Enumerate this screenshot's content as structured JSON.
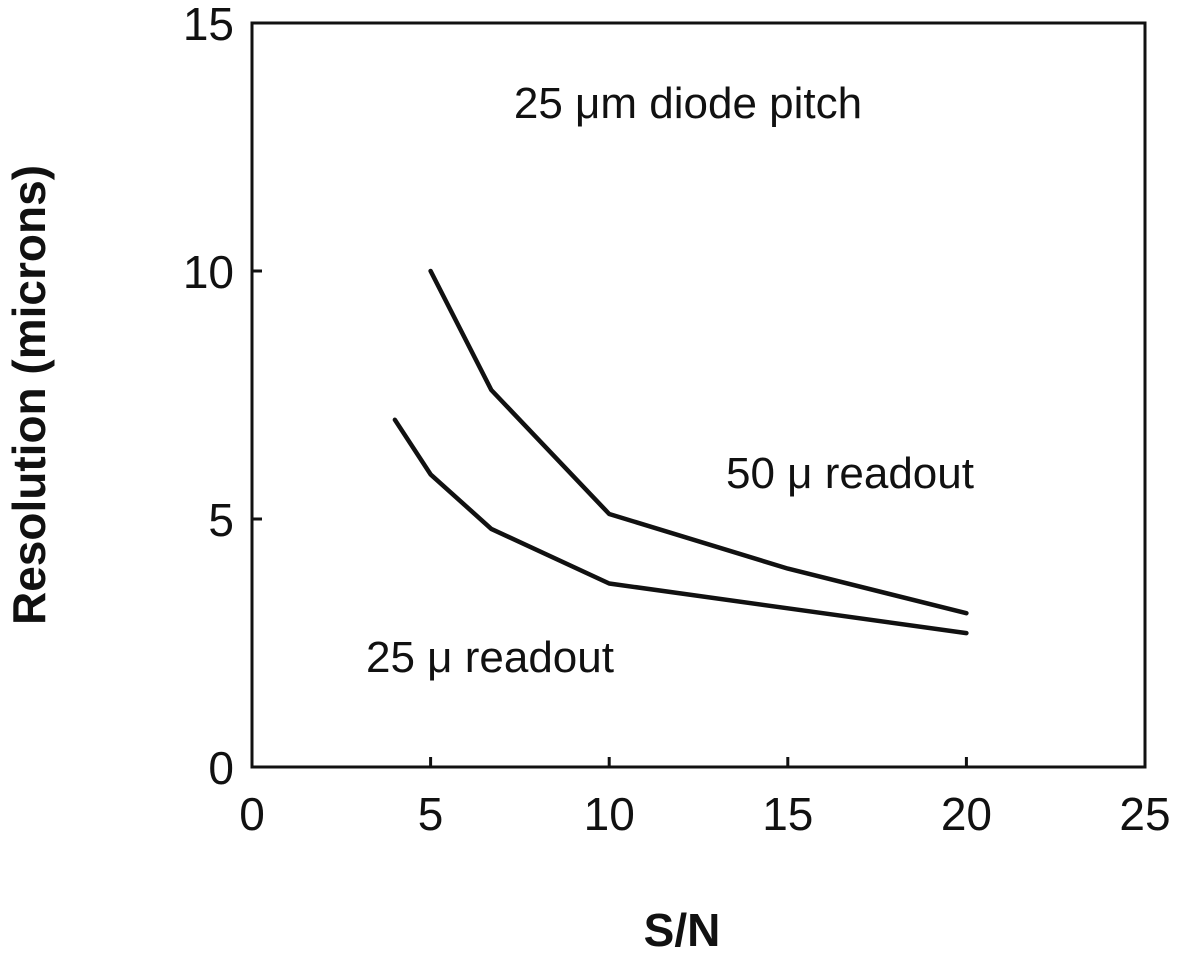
{
  "chart_data": {
    "type": "line",
    "title": "",
    "xlabel": "S/N",
    "ylabel": "Resolution (microns)",
    "xlim": [
      0,
      25
    ],
    "ylim": [
      0,
      15
    ],
    "x_ticks": [
      "0",
      "5",
      "10",
      "15",
      "20",
      "25"
    ],
    "y_ticks": [
      "0",
      "5",
      "10",
      "15"
    ],
    "grid": false,
    "legend": "none",
    "series": [
      {
        "x": [
          5,
          6.7,
          10,
          15,
          20
        ],
        "y": [
          10.0,
          7.6,
          5.1,
          4.0,
          3.1
        ]
      },
      {
        "x": [
          4,
          5,
          6.7,
          10,
          15,
          20
        ],
        "y": [
          7.0,
          5.9,
          4.8,
          3.7,
          3.2,
          2.7
        ]
      }
    ],
    "annotations": [
      {
        "text": "25 μm diode pitch",
        "x": 13,
        "y": 13.3
      },
      {
        "text": "50 μ readout",
        "x": 16.6,
        "y": 5.9
      },
      {
        "text": "25 μ readout",
        "x": 6.5,
        "y": 2.2
      }
    ]
  }
}
